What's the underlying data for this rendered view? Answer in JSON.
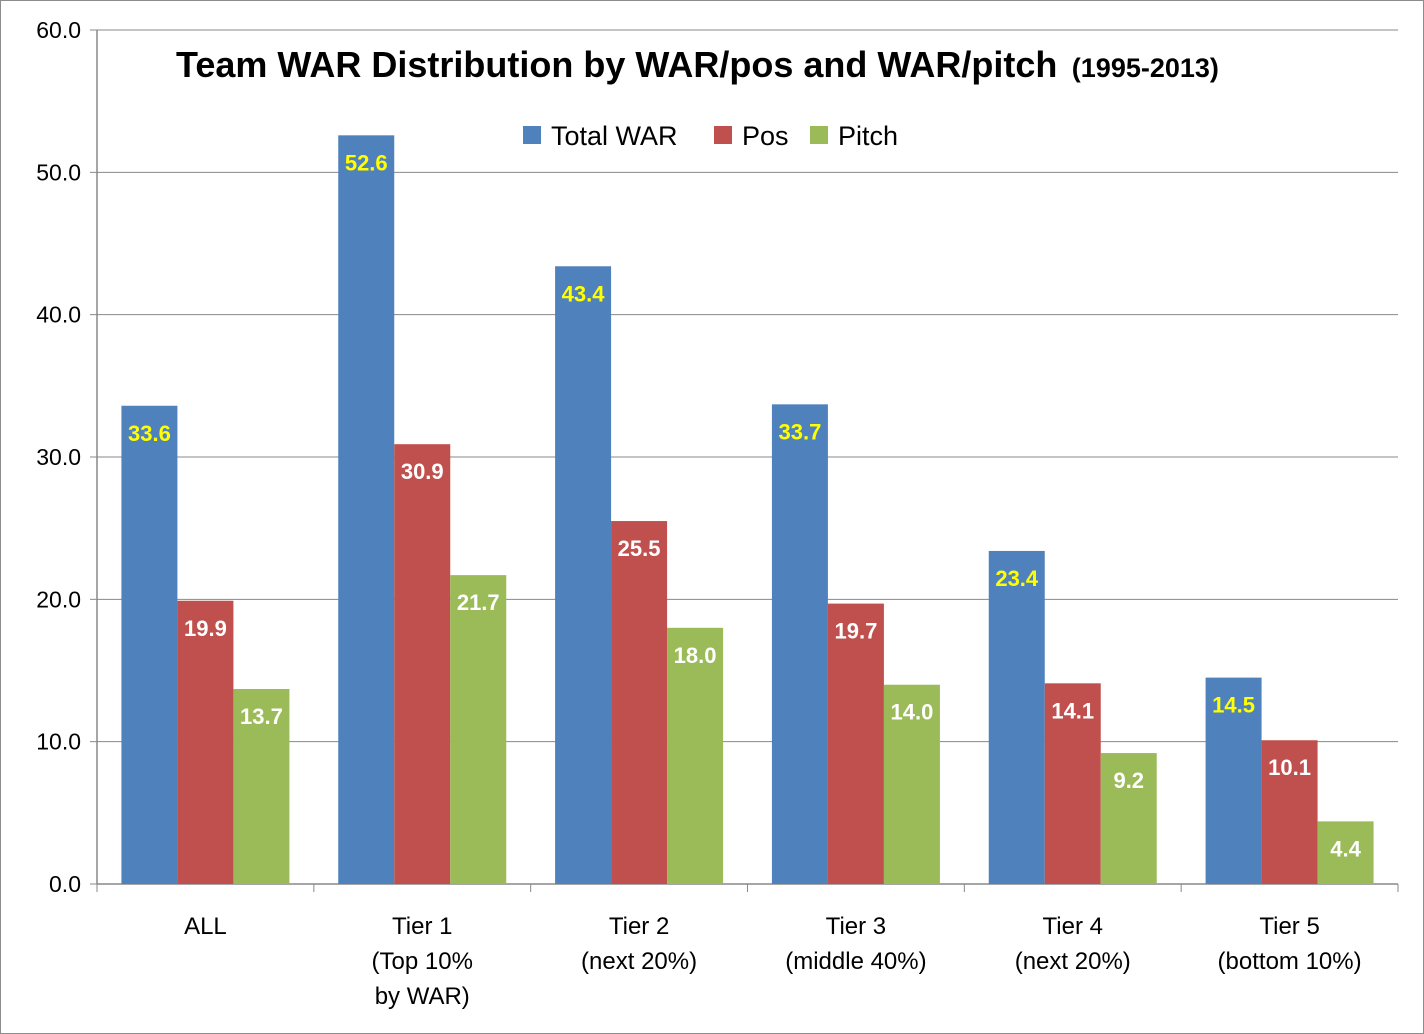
{
  "chart_data": {
    "type": "bar",
    "title": "Team WAR Distribution by WAR/pos and WAR/pitch",
    "title_suffix": "(1995-2013)",
    "categories": [
      [
        "ALL"
      ],
      [
        "Tier 1",
        "(Top 10%",
        "by WAR)"
      ],
      [
        "Tier 2",
        "(next 20%)"
      ],
      [
        "Tier 3",
        "(middle 40%)"
      ],
      [
        "Tier 4",
        "(next 20%)"
      ],
      [
        "Tier 5",
        "(bottom 10%)"
      ]
    ],
    "series": [
      {
        "name": "Total WAR",
        "color": "#4f81bd",
        "label_color": "#ffff00",
        "values": [
          33.6,
          52.6,
          43.4,
          33.7,
          23.4,
          14.5
        ]
      },
      {
        "name": "Pos",
        "color": "#c0504d",
        "label_color": "#ffffff",
        "values": [
          19.9,
          30.9,
          25.5,
          19.7,
          14.1,
          10.1
        ]
      },
      {
        "name": "Pitch",
        "color": "#9bbb59",
        "label_color": "#ffffff",
        "values": [
          13.7,
          21.7,
          18.0,
          14.0,
          9.2,
          4.4
        ]
      }
    ],
    "ylim": [
      0,
      60
    ],
    "yticks": [
      "0.0",
      "10.0",
      "20.0",
      "30.0",
      "40.0",
      "50.0",
      "60.0"
    ],
    "xlabel": "",
    "ylabel": "",
    "grid": true,
    "legend": "top-center"
  }
}
